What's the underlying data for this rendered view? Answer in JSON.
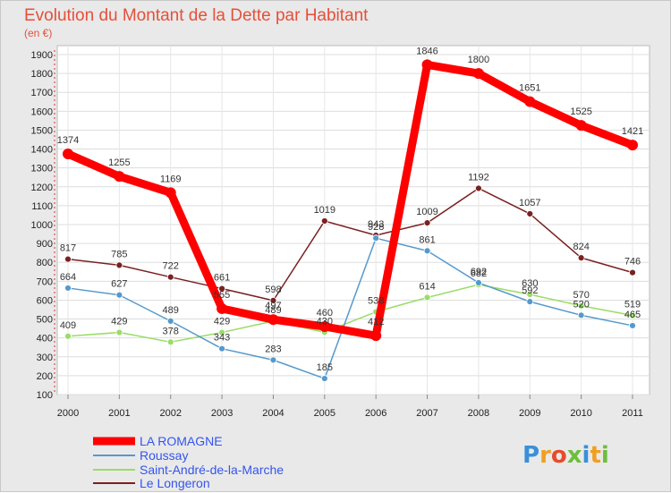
{
  "chart_data": {
    "type": "line",
    "title": "Evolution du Montant de la Dette par Habitant",
    "subtitle": "(en €)",
    "x": [
      "2000",
      "2001",
      "2002",
      "2003",
      "2004",
      "2005",
      "2006",
      "2007",
      "2008",
      "2009",
      "2010",
      "2011"
    ],
    "ylim": [
      100,
      1900
    ],
    "yticks": [
      100,
      200,
      300,
      400,
      500,
      600,
      700,
      800,
      900,
      1000,
      1100,
      1200,
      1300,
      1400,
      1500,
      1600,
      1700,
      1800,
      1900
    ],
    "grid": true,
    "legend_position": "bottom-left",
    "series": [
      {
        "name": "LA ROMAGNE",
        "color": "#ff0000",
        "values": [
          1374,
          1255,
          1169,
          555,
          497,
          460,
          412,
          1846,
          1800,
          1651,
          1525,
          1421
        ]
      },
      {
        "name": "Roussay",
        "color": "#5599cc",
        "values": [
          664,
          627,
          489,
          343,
          283,
          185,
          928,
          861,
          692,
          592,
          520,
          465
        ]
      },
      {
        "name": "Saint-André-de-la-Marche",
        "color": "#99dd66",
        "values": [
          409,
          429,
          378,
          429,
          489,
          430,
          538,
          614,
          682,
          630,
          570,
          519
        ]
      },
      {
        "name": "Le Longeron",
        "color": "#7a2020",
        "values": [
          817,
          785,
          722,
          661,
          598,
          1019,
          943,
          1009,
          1192,
          1057,
          824,
          746
        ]
      }
    ]
  },
  "logo": {
    "text": "Proxiti"
  }
}
